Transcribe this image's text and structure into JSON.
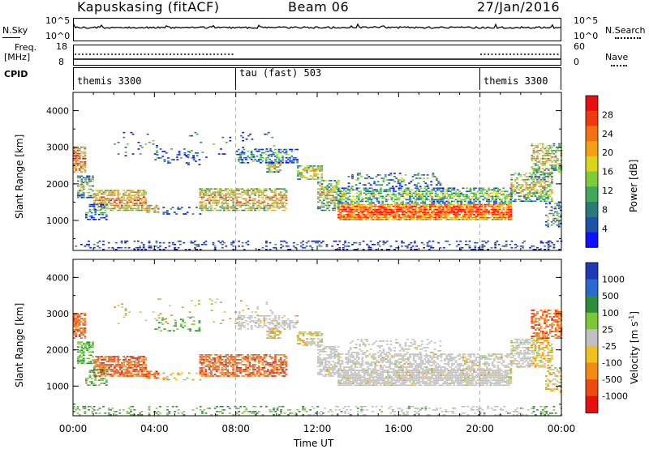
{
  "header": {
    "station": "Kapuskasing (fitACF)",
    "beam": "Beam 06",
    "date": "27/Jan/2016"
  },
  "noise_panel": {
    "left_label": "N.Sky",
    "right_label": "N.Search",
    "left_ticks": [
      "10^5",
      "10^0"
    ],
    "right_ticks": [
      "10^5",
      "10^0"
    ]
  },
  "freq_panel": {
    "left_label_1": "Freq.",
    "left_label_2": "[MHz]",
    "right_label": "Nave",
    "left_ticks": [
      "18",
      "8"
    ],
    "right_ticks": [
      "60",
      "0"
    ]
  },
  "cpid": {
    "label": "CPID",
    "segments": [
      {
        "name": "themis 3300",
        "start": 0,
        "end": 8
      },
      {
        "name": "tau (fast) 503",
        "start": 8,
        "end": 20
      },
      {
        "name": "themis 3300",
        "start": 20,
        "end": 24
      }
    ]
  },
  "chart_data": [
    {
      "type": "heatmap",
      "ylabel": "Slant Range [km]",
      "xlabel": "Time UT",
      "xlim": [
        0,
        24
      ],
      "ylim": [
        180,
        4500
      ],
      "yticks": [
        "1000",
        "2000",
        "3000",
        "4000"
      ],
      "xticks": [
        "00:00",
        "04:00",
        "08:00",
        "12:00",
        "16:00",
        "20:00",
        "00:00"
      ],
      "colorbar": {
        "label": "Power [dB]",
        "ticks": [
          "4",
          "8",
          "12",
          "16",
          "20",
          "24",
          "28"
        ],
        "colors": [
          "#1010ff",
          "#1c52a8",
          "#2a7a7a",
          "#3fa85a",
          "#7ccd3a",
          "#d9d41c",
          "#f5a012",
          "#f3720f",
          "#ee3a0c",
          "#e80f0f"
        ]
      }
    },
    {
      "type": "heatmap",
      "ylabel": "Slant Range [km]",
      "xlabel": "Time UT",
      "xlim": [
        0,
        24
      ],
      "ylim": [
        180,
        4500
      ],
      "yticks": [
        "1000",
        "2000",
        "3000",
        "4000"
      ],
      "xticks": [
        "00:00",
        "04:00",
        "08:00",
        "12:00",
        "16:00",
        "20:00",
        "00:00"
      ],
      "colorbar": {
        "label": "Velocity [m s-1]",
        "ticks": [
          "1000",
          "500",
          "100",
          "25",
          "-25",
          "-100",
          "-500",
          "-1000"
        ],
        "colors": [
          "#1f3ab8",
          "#2a6ad0",
          "#2a8e3a",
          "#7cc834",
          "#c0c0c0",
          "#f0c020",
          "#f08a10",
          "#ee4a0e",
          "#e80f0f"
        ]
      }
    }
  ]
}
